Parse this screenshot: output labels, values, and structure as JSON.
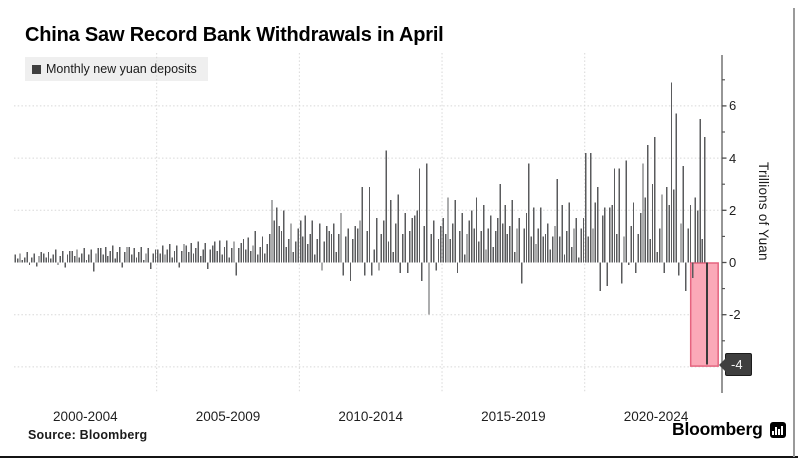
{
  "header": {
    "title": "China Saw Record Bank Withdrawals in April"
  },
  "legend": {
    "label": "Monthly new yuan deposits",
    "swatch_color": "#3f3f3f"
  },
  "y_axis": {
    "label": "Trillions of Yuan",
    "tick_labels": [
      [
        6,
        "6"
      ],
      [
        4,
        "4"
      ],
      [
        2,
        "2"
      ],
      [
        0,
        "0"
      ],
      [
        -2,
        "-2"
      ]
    ],
    "last_value_badge": "-4"
  },
  "x_axis": {
    "labels": [
      "2000-2004",
      "2005-2009",
      "2010-2014",
      "2015-2019",
      "2020-2024"
    ]
  },
  "footer": {
    "source": "Source: Bloomberg",
    "brand": "Bloomberg"
  },
  "colors": {
    "bar": "#5a5b5d",
    "last_bar": "#3a3a3a",
    "highlight_fill": "#FBA9B8",
    "highlight_border": "#E5647F",
    "gridline": "#d8d8d8",
    "axis_line": "#6a6a6a",
    "tick": "#4d4d4d",
    "badge_bg": "#3f3f3f"
  },
  "chart_data": {
    "type": "bar",
    "title": "China Saw Record Bank Withdrawals in April",
    "series_name": "Monthly new yuan deposits",
    "ylabel": "Trillions of Yuan",
    "unit": "trillion yuan",
    "frequency": "monthly",
    "x_start": "2000-01",
    "x_end": "2024-04",
    "ylim": [
      -5,
      8
    ],
    "gridlines": [
      6,
      4,
      2,
      -2,
      -4
    ],
    "minor_ticks": [
      7,
      5,
      3,
      1,
      -1,
      -3
    ],
    "period_labels": [
      "2000-2004",
      "2005-2009",
      "2010-2014",
      "2015-2019",
      "2020-2024"
    ],
    "legend_position": "top-left",
    "highlight": {
      "index": 291,
      "month": "2024-04",
      "value": -3.9,
      "label": "-4"
    },
    "values": [
      0.3,
      0.15,
      0.35,
      0.1,
      0.2,
      0.4,
      -0.1,
      0.2,
      0.35,
      -0.15,
      0.25,
      0.4,
      0.35,
      0.2,
      0.4,
      0.15,
      0.3,
      0.5,
      -0.1,
      0.25,
      0.45,
      -0.2,
      0.3,
      0.45,
      0.45,
      0.25,
      0.5,
      0.2,
      0.35,
      0.55,
      0.1,
      0.3,
      0.5,
      -0.35,
      0.35,
      0.55,
      0.55,
      0.3,
      0.6,
      0.25,
      0.45,
      0.65,
      0.15,
      0.4,
      0.6,
      -0.2,
      0.4,
      0.6,
      0.6,
      0.3,
      0.55,
      0.2,
      0.4,
      0.6,
      0.1,
      0.35,
      0.55,
      -0.25,
      0.35,
      0.5,
      0.5,
      0.35,
      0.65,
      0.3,
      0.5,
      0.7,
      0.2,
      0.45,
      0.65,
      -0.2,
      0.45,
      0.7,
      0.65,
      0.4,
      0.75,
      0.35,
      0.55,
      0.8,
      0.25,
      0.5,
      0.75,
      -0.25,
      0.5,
      0.65,
      0.8,
      0.45,
      0.85,
      0.3,
      0.6,
      0.85,
      0.2,
      0.55,
      0.8,
      -0.5,
      0.55,
      0.75,
      0.9,
      0.5,
      0.95,
      0.45,
      0.65,
      1.2,
      0.3,
      0.6,
      1.0,
      0.35,
      0.7,
      1.1,
      2.4,
      1.6,
      2.1,
      1.4,
      1.2,
      2.0,
      0.6,
      0.9,
      1.5,
      0.4,
      0.8,
      1.3,
      1.6,
      1.0,
      1.8,
      0.7,
      1.1,
      1.6,
      0.3,
      0.9,
      1.5,
      -0.3,
      0.8,
      1.4,
      1.2,
      1.1,
      1.5,
      0.4,
      1.1,
      1.9,
      -0.5,
      1.0,
      1.3,
      -0.7,
      0.9,
      1.4,
      1.3,
      1.6,
      2.9,
      -0.5,
      1.2,
      2.9,
      -0.5,
      0.5,
      1.7,
      -0.3,
      1.1,
      1.6,
      4.3,
      0.8,
      2.4,
      0.4,
      1.5,
      2.6,
      -0.4,
      1.1,
      1.9,
      -0.4,
      1.2,
      1.7,
      1.8,
      2.0,
      3.6,
      -0.7,
      1.4,
      3.8,
      -2.0,
      1.1,
      1.6,
      -0.3,
      0.9,
      1.4,
      1.7,
      1.1,
      2.5,
      0.9,
      1.5,
      2.4,
      -0.4,
      1.2,
      1.9,
      0.3,
      1.1,
      1.6,
      2.0,
      1.3,
      2.5,
      0.8,
      1.2,
      2.2,
      0.5,
      1.3,
      1.8,
      0.6,
      1.2,
      1.7,
      3.0,
      1.5,
      2.2,
      1.1,
      1.4,
      2.4,
      0.4,
      1.3,
      1.7,
      -0.8,
      1.3,
      1.9,
      3.8,
      1.0,
      2.1,
      0.7,
      1.3,
      2.1,
      1.0,
      1.1,
      1.5,
      0.5,
      1.0,
      1.4,
      3.2,
      1.0,
      2.2,
      0.3,
      1.2,
      2.3,
      0.6,
      1.3,
      1.7,
      0.2,
      1.3,
      1.7,
      4.2,
      1.0,
      4.2,
      1.3,
      2.3,
      2.9,
      -1.1,
      1.8,
      2.1,
      -0.9,
      2.1,
      2.2,
      3.6,
      1.1,
      3.6,
      -0.8,
      1.0,
      3.9,
      -0.1,
      1.4,
      2.3,
      -0.4,
      1.1,
      1.9,
      3.8,
      2.5,
      4.5,
      0.9,
      3.0,
      4.8,
      0.4,
      1.3,
      2.6,
      -0.4,
      2.9,
      2.2,
      6.9,
      2.8,
      5.7,
      -0.5,
      1.5,
      3.7,
      -1.1,
      1.3,
      2.2,
      -0.6,
      2.5,
      2.0,
      5.5,
      0.9,
      4.8,
      -3.9
    ]
  }
}
